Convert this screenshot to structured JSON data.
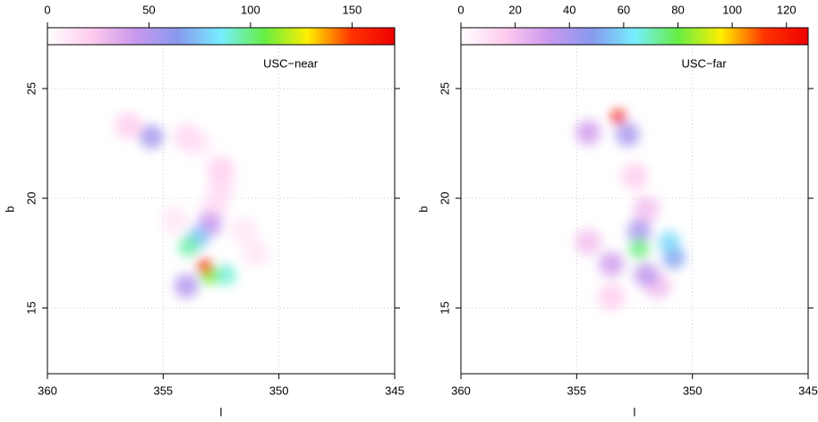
{
  "chart_data": [
    {
      "type": "heatmap",
      "title": "USC−near",
      "xlabel": "l",
      "ylabel": "b",
      "xlim": [
        360,
        345
      ],
      "xticks": [
        360,
        355,
        350,
        345
      ],
      "ylim": [
        12,
        27
      ],
      "yticks": [
        15,
        20,
        25
      ],
      "grid": true,
      "colorbar": {
        "lim": [
          0,
          171
        ],
        "ticks": [
          0,
          50,
          100,
          150
        ],
        "colors": [
          "#ffffff",
          "#ffccee",
          "#cc99ee",
          "#8899ee",
          "#77eeff",
          "#66ee44",
          "#ffee00",
          "#ff3300",
          "#ee0000"
        ]
      },
      "x": [
        354.5,
        351.5,
        351,
        353.5,
        356.5,
        354,
        352.5,
        352.5,
        352.8,
        355.5,
        354,
        353,
        353.5,
        352.3,
        353.9,
        353,
        353.2
      ],
      "y": [
        19,
        18.5,
        17.5,
        22.5,
        23.3,
        22.8,
        21.3,
        20.5,
        19.5,
        22.8,
        16,
        18.8,
        18.2,
        16.5,
        17.8,
        16.5,
        16.9
      ],
      "values": [
        10,
        10,
        10,
        10,
        20,
        15,
        20,
        15,
        15,
        55,
        50,
        45,
        75,
        90,
        95,
        110,
        165
      ]
    },
    {
      "type": "heatmap",
      "title": "USC−far",
      "xlabel": "l",
      "ylabel": "b",
      "xlim": [
        360,
        345
      ],
      "xticks": [
        360,
        355,
        350,
        345
      ],
      "ylim": [
        12,
        27
      ],
      "yticks": [
        15,
        20,
        25
      ],
      "grid": true,
      "colorbar": {
        "lim": [
          0,
          128
        ],
        "ticks": [
          0,
          20,
          40,
          60,
          80,
          100,
          120
        ],
        "colors": [
          "#ffffff",
          "#ffccee",
          "#cc99ee",
          "#8899ee",
          "#77eeff",
          "#66ee44",
          "#ffee00",
          "#ff3300",
          "#ee0000"
        ]
      },
      "x": [
        353.5,
        352.5,
        352,
        354.5,
        351.5,
        354.5,
        353.5,
        352,
        352.8,
        352.3,
        350.8,
        351,
        352.3,
        353.2
      ],
      "y": [
        15.5,
        21,
        19.5,
        18,
        16,
        23,
        17,
        16.5,
        22.9,
        18.5,
        17.3,
        18,
        17.7,
        23.7
      ],
      "values": [
        15,
        15,
        20,
        20,
        20,
        30,
        30,
        35,
        40,
        40,
        50,
        60,
        75,
        125
      ]
    }
  ]
}
